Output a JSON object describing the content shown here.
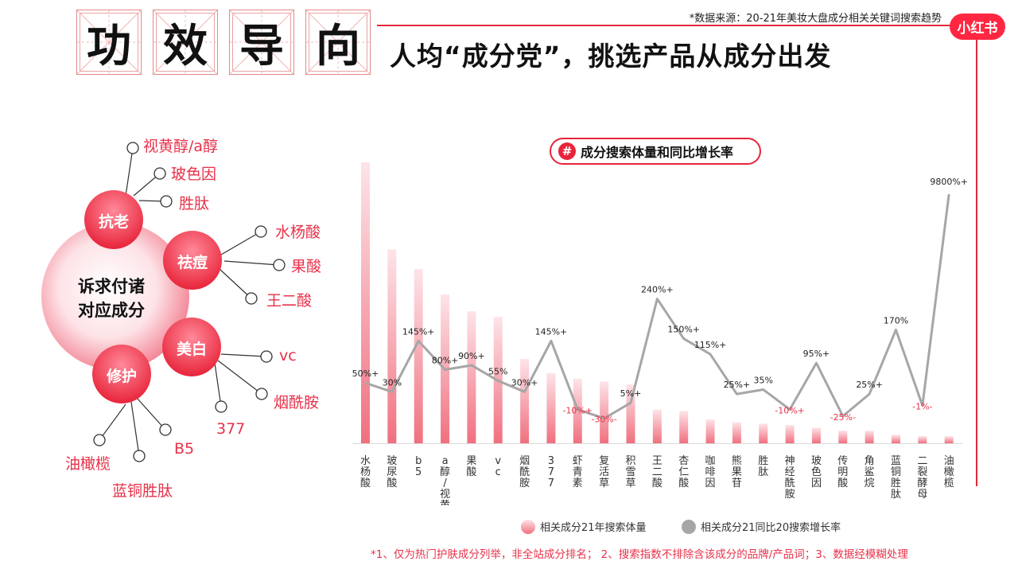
{
  "header": {
    "title_chars": [
      "功",
      "效",
      "导",
      "向"
    ],
    "subtitle": "人均“成分党”，挑选产品从成分出发",
    "source": "*数据来源：20-21年美妆大盘成分相关关键词搜索趋势",
    "logo": "小红书"
  },
  "diagram": {
    "center_line1": "诉求付诸",
    "center_line2": "对应成分",
    "groups": [
      {
        "name": "抗老",
        "items": [
          "视黄醇/a醇",
          "玻色因",
          "胜肽"
        ]
      },
      {
        "name": "祛痘",
        "items": [
          "水杨酸",
          "果酸",
          "王二酸"
        ]
      },
      {
        "name": "美白",
        "items": [
          "vc",
          "烟酰胺",
          "377"
        ]
      },
      {
        "name": "修护",
        "items": [
          "B5",
          "蓝铜胜肽",
          "油橄榄"
        ]
      }
    ]
  },
  "chart_title": "成分搜索体量和同比增长率",
  "chart_data": {
    "type": "bar",
    "categories": [
      "水杨酸",
      "玻尿酸",
      "b5",
      "a醇/视黄醇",
      "果酸",
      "vc",
      "烟酰胺",
      "377",
      "虾青素",
      "复活草",
      "积雪草",
      "王二酸",
      "杏仁酸",
      "咖啡因",
      "熊果苷",
      "胜肽",
      "神经酰胺",
      "玻色因",
      "传明酸",
      "角鲨烷",
      "蓝铜胜肽",
      "二裂酵母",
      "油橄榄"
    ],
    "series": [
      {
        "name": "相关成分21年搜索体量",
        "type": "bar",
        "values": [
          100,
          69,
          62,
          53,
          47,
          45,
          30,
          25,
          23,
          22,
          21,
          12,
          11.5,
          8.5,
          7.5,
          7,
          6.5,
          5.5,
          4.5,
          4.5,
          3,
          2.5,
          2.5
        ]
      },
      {
        "name": "相关成分21同比20搜索增长率",
        "type": "line",
        "values": [
          50,
          30,
          145,
          80,
          90,
          55,
          30,
          145,
          -10,
          -30,
          5,
          240,
          150,
          115,
          25,
          35,
          -10,
          95,
          -25,
          25,
          170,
          -1,
          9800
        ],
        "labels": [
          "50%+",
          "30%",
          "145%+",
          "80%+",
          "90%+",
          "55%",
          "30%+",
          "145%+",
          "-10%+",
          "-30%-",
          "5%+",
          "240%+",
          "150%+",
          "115%+",
          "25%+",
          "35%",
          "-10%+",
          "95%+",
          "-25%-",
          "25%+",
          "170%",
          "-1%-",
          "9800%+"
        ]
      }
    ],
    "negative_label_color": "#e8324a",
    "bar_color": "#f0707f",
    "line_color": "#a6a6a6"
  },
  "legend": {
    "bar": "相关成分21年搜索体量",
    "line": "相关成分21同比20搜索增长率"
  },
  "footnote": "*1、仅为热门护肤成分列举，非全站成分排名；  2、搜索指数不排除含该成分的品牌/产品词；3、数据经模糊处理",
  "colors": {
    "accent": "#e8243a",
    "brand": "#ff2741"
  }
}
